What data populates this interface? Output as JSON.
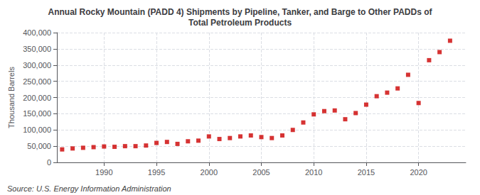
{
  "chart_data": {
    "type": "scatter",
    "title": "Annual Rocky Mountain (PADD 4) Shipments by Pipeline, Tanker, and Barge to Other PADDs of\nTotal Petroleum Products",
    "ylabel": "Thousand Barrels",
    "annotations": [
      "Source: U.S. Energy Information Administration"
    ],
    "x": [
      1986,
      1987,
      1988,
      1989,
      1990,
      1991,
      1992,
      1993,
      1994,
      1995,
      1996,
      1997,
      1998,
      1999,
      2000,
      2001,
      2002,
      2003,
      2004,
      2005,
      2006,
      2007,
      2008,
      2009,
      2010,
      2011,
      2012,
      2013,
      2014,
      2015,
      2016,
      2017,
      2018,
      2019,
      2020,
      2021,
      2022,
      2023
    ],
    "values": [
      40000,
      43000,
      45000,
      47000,
      49000,
      48000,
      50000,
      50000,
      52000,
      60000,
      63000,
      57000,
      65000,
      67000,
      80000,
      72000,
      75000,
      80000,
      83000,
      78000,
      75000,
      83000,
      100000,
      123000,
      148000,
      158000,
      160000,
      133000,
      152000,
      178000,
      204000,
      215000,
      228000,
      270000,
      183000,
      315000,
      340000,
      375000
    ],
    "color": "#cc0000",
    "marker": "square",
    "xlim": [
      1985.5,
      2024.5
    ],
    "xticks": [
      1990,
      1995,
      2000,
      2005,
      2010,
      2015,
      2020
    ],
    "ylim": [
      0,
      400000
    ],
    "yticks": [
      0,
      {
        "value": 50000,
        "label": "50,000"
      },
      {
        "value": 100000,
        "label": "100,000"
      },
      {
        "value": 150000,
        "label": "150,000"
      },
      {
        "value": 200000,
        "label": "200,000"
      },
      {
        "value": 250000,
        "label": "250,000"
      },
      {
        "value": 300000,
        "label": "300,000"
      },
      {
        "value": 350000,
        "label": "350,000"
      },
      {
        "value": 400000,
        "label": "400,000"
      }
    ],
    "grid": true
  }
}
